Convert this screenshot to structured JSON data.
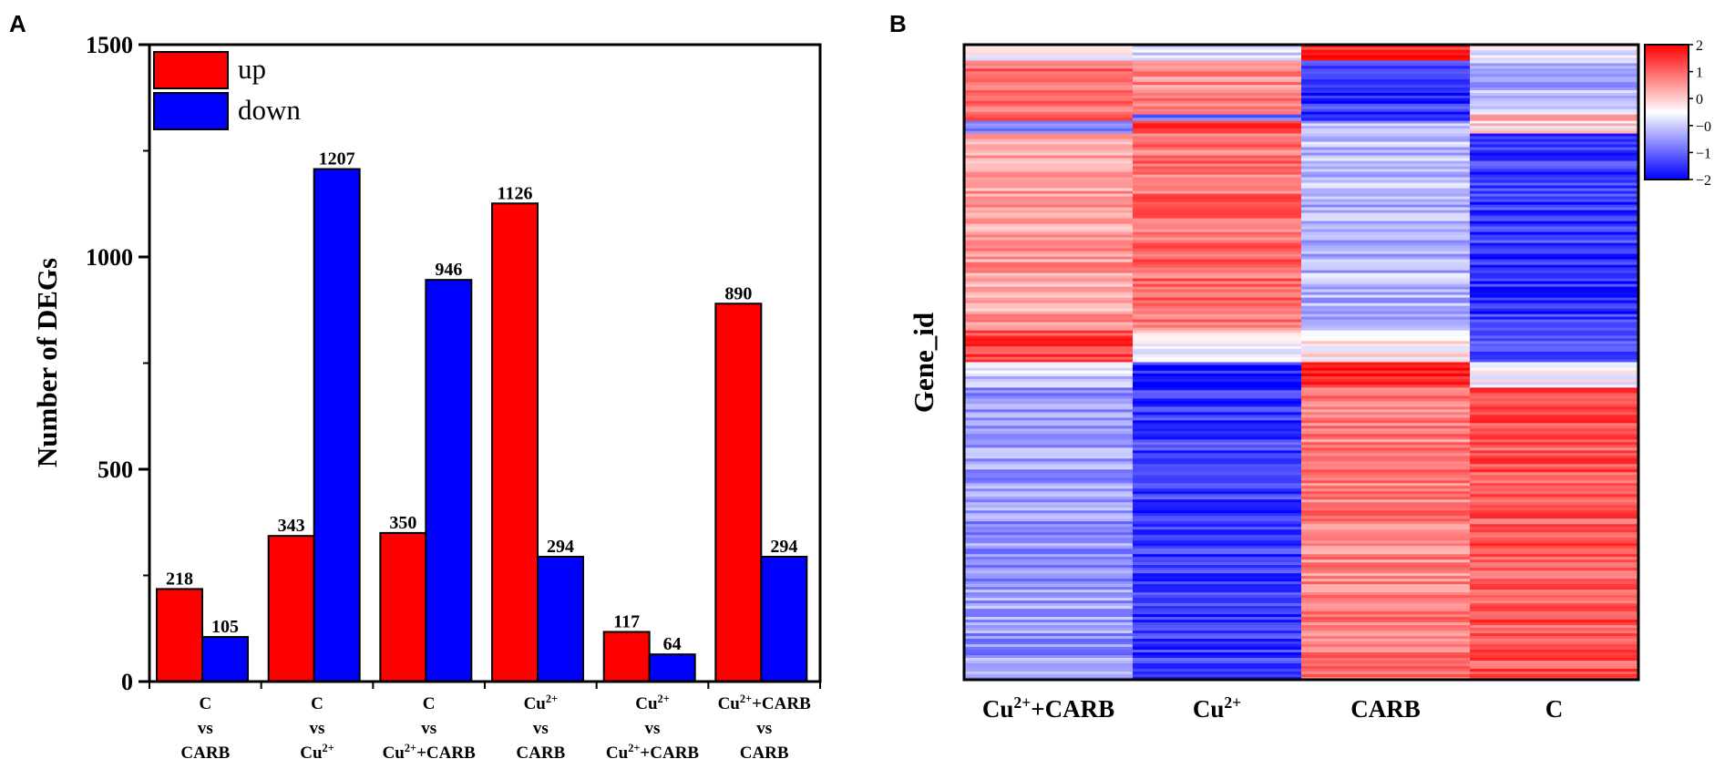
{
  "panels": {
    "a": "A",
    "b": "B"
  },
  "chart_data": [
    {
      "type": "bar",
      "panel": "A",
      "ylabel": "Number of  DEGs",
      "xlabel": "",
      "ylim": [
        0,
        1500
      ],
      "yticks": [
        0,
        500,
        1000,
        1500
      ],
      "grid": false,
      "legend_position": "top-left",
      "categories": [
        [
          "C",
          "vs",
          "CARB"
        ],
        [
          "C",
          "vs",
          "Cu2+"
        ],
        [
          "C",
          "vs",
          "Cu2++CARB"
        ],
        [
          "Cu2+",
          "vs",
          "CARB"
        ],
        [
          "Cu2+",
          "vs",
          "Cu2++CARB"
        ],
        [
          "Cu2++CARB",
          "vs",
          "CARB"
        ]
      ],
      "series": [
        {
          "name": "up",
          "color": "#ff0000",
          "values": [
            218,
            343,
            350,
            1126,
            117,
            890
          ]
        },
        {
          "name": "down",
          "color": "#0000ff",
          "values": [
            105,
            1207,
            946,
            294,
            64,
            294
          ]
        }
      ]
    },
    {
      "type": "heatmap",
      "panel": "B",
      "ylabel": "Gene_id",
      "columns": [
        "Cu2++CARB",
        "Cu2+",
        "CARB",
        "C"
      ],
      "colorbar": {
        "min": -2,
        "max": 2,
        "ticks": [
          "2",
          "1",
          "0",
          "−0",
          "−1",
          "−2"
        ],
        "low_color": "#0000ff",
        "mid_color": "#ffffff",
        "high_color": "#ff0000"
      },
      "clusters": [
        {
          "rows_fraction": 0.025,
          "values": [
            0.05,
            -0.35,
            1.7,
            -0.2
          ]
        },
        {
          "rows_fraction": 0.085,
          "values": [
            1.1,
            0.9,
            -1.6,
            -0.55
          ]
        },
        {
          "rows_fraction": 0.01,
          "values": [
            1.7,
            -1.2,
            -1.5,
            0.6
          ]
        },
        {
          "rows_fraction": 0.02,
          "values": [
            -1.0,
            1.5,
            -0.5,
            0.25
          ]
        },
        {
          "rows_fraction": 0.31,
          "values": [
            0.75,
            1.15,
            -0.55,
            -1.6
          ]
        },
        {
          "rows_fraction": 0.05,
          "values": [
            1.45,
            0.1,
            0.1,
            -1.5
          ]
        },
        {
          "rows_fraction": 0.04,
          "values": [
            -0.3,
            -1.7,
            1.6,
            0.05
          ]
        },
        {
          "rows_fraction": 0.46,
          "values": [
            -0.8,
            -1.55,
            1.0,
            1.35
          ]
        }
      ]
    }
  ]
}
